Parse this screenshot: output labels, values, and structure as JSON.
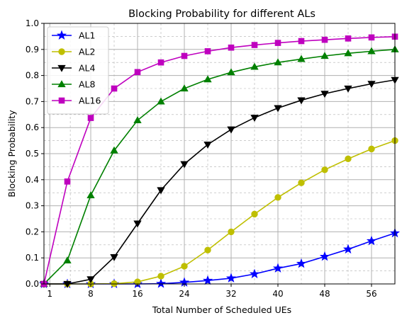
{
  "chart_data": {
    "type": "line",
    "title": "Blocking Probability for different ALs",
    "xlabel": "Total Number of Scheduled UEs",
    "ylabel": "Blocking Probability",
    "xlim": [
      0,
      60
    ],
    "ylim": [
      0,
      1.0
    ],
    "xticks": [
      1,
      8,
      16,
      24,
      32,
      40,
      48,
      56
    ],
    "xtick_labels": [
      "1",
      "8",
      "16",
      "24",
      "32",
      "40",
      "48",
      "56"
    ],
    "yticks": [
      0.0,
      0.1,
      0.2,
      0.3,
      0.4,
      0.5,
      0.6,
      0.7,
      0.8,
      0.9,
      1.0
    ],
    "ytick_labels": [
      "0.0",
      "0.1",
      "0.2",
      "0.3",
      "0.4",
      "0.5",
      "0.6",
      "0.7",
      "0.8",
      "0.9",
      "1.0"
    ],
    "grid": "major solid, minor dashed",
    "legend": "top-left",
    "x": [
      0,
      4,
      8,
      12,
      16,
      20,
      24,
      28,
      32,
      36,
      40,
      44,
      48,
      52,
      56,
      60
    ],
    "series": [
      {
        "name": "AL1",
        "color": "#0000ff",
        "marker": "star",
        "values": [
          0,
          0,
          0,
          0,
          0,
          0.001,
          0.006,
          0.013,
          0.022,
          0.038,
          0.06,
          0.078,
          0.105,
          0.133,
          0.165,
          0.195
        ]
      },
      {
        "name": "AL2",
        "color": "#bfbf00",
        "marker": "circle",
        "values": [
          0,
          0,
          0,
          0.001,
          0.008,
          0.03,
          0.068,
          0.13,
          0.2,
          0.268,
          0.332,
          0.388,
          0.438,
          0.48,
          0.518,
          0.55
        ]
      },
      {
        "name": "AL4",
        "color": "#000000",
        "marker": "triangle-down",
        "values": [
          0,
          0,
          0.018,
          0.103,
          0.232,
          0.36,
          0.46,
          0.535,
          0.593,
          0.638,
          0.675,
          0.705,
          0.73,
          0.75,
          0.768,
          0.783
        ]
      },
      {
        "name": "AL8",
        "color": "#008000",
        "marker": "triangle-up",
        "values": [
          0,
          0.09,
          0.34,
          0.512,
          0.628,
          0.7,
          0.75,
          0.785,
          0.812,
          0.833,
          0.85,
          0.863,
          0.875,
          0.885,
          0.893,
          0.9
        ]
      },
      {
        "name": "AL16",
        "color": "#bf00bf",
        "marker": "square",
        "values": [
          0,
          0.393,
          0.637,
          0.75,
          0.813,
          0.85,
          0.875,
          0.893,
          0.907,
          0.917,
          0.925,
          0.932,
          0.937,
          0.942,
          0.946,
          0.949
        ]
      }
    ]
  }
}
